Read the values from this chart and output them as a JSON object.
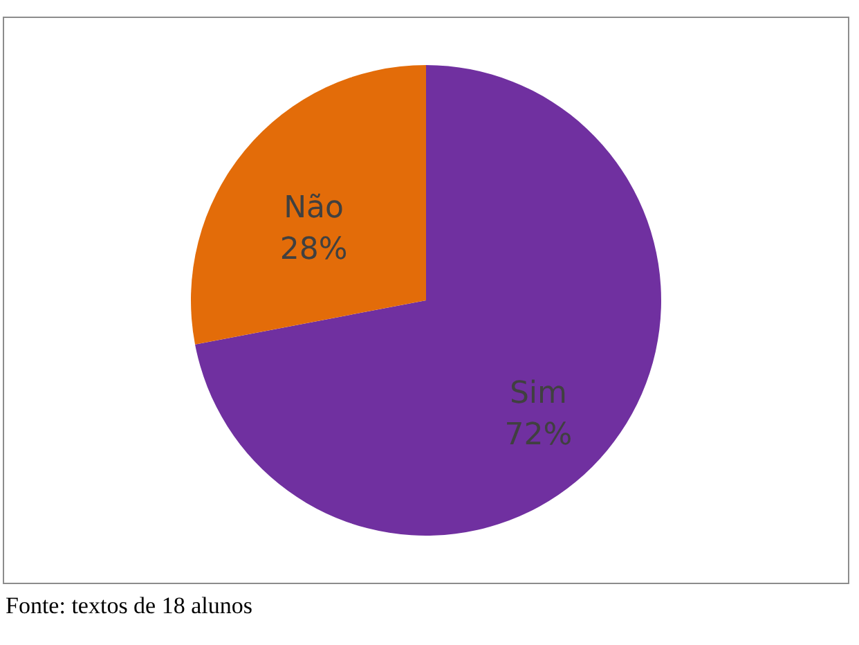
{
  "chart_data": {
    "type": "pie",
    "categories": [
      "Sim",
      "Não"
    ],
    "values": [
      72,
      28
    ],
    "value_labels": [
      "72%",
      "28%"
    ],
    "colors": [
      "#7030a0",
      "#e36c09"
    ],
    "annotations": [
      "Fonte: textos de 18 alunos"
    ]
  }
}
